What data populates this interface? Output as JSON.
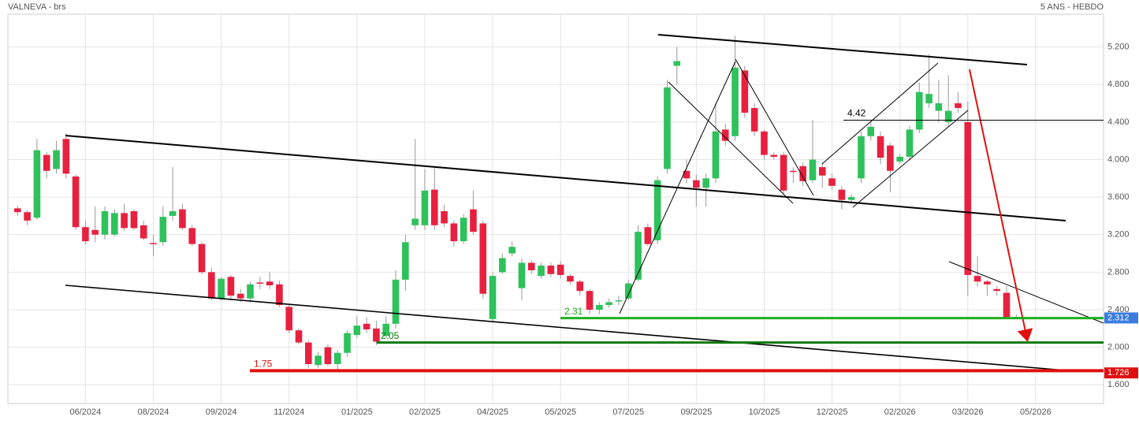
{
  "chart_data": {
    "type": "candlestick",
    "title": "VALNEVA - brs",
    "subtitle": "5 ANS - HEBDO",
    "up_color": "#2ec15c",
    "down_color": "#e8203f",
    "open": [
      3.48,
      3.44,
      3.38,
      4.05,
      3.9,
      4.22,
      3.82,
      3.28,
      3.25,
      3.2,
      3.2,
      3.43,
      3.45,
      3.3,
      3.11,
      3.12,
      3.4,
      3.47,
      3.27,
      3.1,
      2.8,
      2.52,
      2.75,
      2.57,
      2.52,
      2.69,
      2.7,
      2.67,
      2.43,
      2.18,
      2.05,
      1.81,
      2.0,
      1.82,
      1.94,
      2.13,
      2.25,
      2.2,
      2.12,
      2.25,
      2.72,
      3.3,
      3.3,
      3.68,
      3.45,
      3.32,
      3.13,
      3.47,
      3.32,
      2.3,
      2.8,
      3.0,
      2.63,
      2.9,
      2.76,
      2.87,
      2.88,
      2.76,
      2.7,
      2.6,
      2.4,
      2.45,
      2.49,
      2.52,
      2.72,
      3.28,
      3.14,
      3.9,
      5.0,
      3.88,
      3.78,
      3.7,
      3.8,
      4.32,
      4.25,
      4.95,
      4.55,
      4.3,
      4.05,
      4.05,
      3.88,
      3.93,
      3.78,
      3.92,
      3.8,
      3.68,
      3.57,
      3.8,
      4.25,
      4.25,
      4.15,
      3.98,
      4.03,
      4.32,
      4.6,
      4.52,
      4.4,
      4.6,
      4.4,
      2.76,
      2.7,
      2.62,
      2.58,
      2.32
    ],
    "high": [
      3.51,
      3.46,
      4.22,
      4.08,
      4.2,
      4.28,
      3.84,
      3.35,
      3.5,
      3.5,
      3.47,
      3.53,
      3.47,
      3.35,
      3.2,
      3.5,
      3.92,
      3.53,
      3.3,
      3.12,
      2.85,
      2.75,
      2.77,
      2.62,
      2.7,
      2.75,
      2.8,
      2.71,
      2.45,
      2.2,
      2.07,
      1.95,
      2.03,
      1.97,
      2.18,
      2.33,
      2.32,
      2.28,
      2.33,
      2.82,
      3.2,
      4.22,
      3.9,
      3.92,
      3.52,
      3.35,
      3.42,
      3.67,
      3.35,
      2.8,
      3.0,
      3.13,
      2.95,
      2.93,
      2.9,
      2.9,
      2.92,
      2.78,
      2.72,
      2.62,
      2.48,
      2.52,
      2.55,
      2.72,
      3.3,
      3.32,
      3.82,
      4.85,
      5.2,
      4.0,
      3.84,
      3.85,
      4.6,
      4.38,
      5.32,
      5.0,
      4.6,
      4.32,
      4.08,
      4.08,
      3.92,
      3.97,
      4.42,
      3.97,
      3.85,
      3.72,
      3.63,
      4.3,
      4.4,
      4.3,
      4.18,
      4.06,
      4.36,
      4.82,
      5.12,
      4.85,
      4.9,
      4.72,
      4.62,
      2.97,
      2.72,
      2.65,
      2.65,
      2.35
    ],
    "low": [
      3.4,
      3.3,
      3.36,
      3.8,
      3.85,
      3.8,
      3.25,
      3.1,
      3.12,
      3.15,
      3.18,
      3.24,
      3.25,
      3.14,
      2.97,
      3.08,
      3.35,
      3.25,
      3.08,
      2.78,
      2.5,
      2.5,
      2.5,
      2.48,
      2.48,
      2.62,
      2.62,
      2.43,
      2.15,
      2.03,
      1.78,
      1.78,
      1.8,
      1.75,
      1.9,
      2.1,
      2.15,
      2.02,
      2.1,
      2.2,
      2.6,
      3.25,
      3.25,
      3.25,
      3.28,
      3.07,
      3.1,
      3.2,
      2.52,
      2.28,
      2.78,
      2.97,
      2.5,
      2.78,
      2.73,
      2.75,
      2.73,
      2.67,
      2.55,
      2.35,
      2.35,
      2.42,
      2.45,
      2.5,
      2.7,
      3.08,
      3.1,
      3.85,
      4.8,
      3.75,
      3.5,
      3.5,
      3.75,
      4.15,
      4.2,
      4.45,
      4.25,
      4.0,
      4.0,
      3.63,
      3.75,
      3.72,
      3.75,
      3.7,
      3.68,
      3.47,
      3.53,
      3.75,
      4.2,
      3.95,
      3.65,
      3.95,
      4.0,
      4.28,
      4.55,
      4.4,
      4.35,
      4.5,
      2.55,
      2.65,
      2.55,
      2.55,
      2.3,
      2.3
    ],
    "close": [
      3.44,
      3.35,
      4.1,
      3.88,
      4.1,
      3.85,
      3.28,
      3.13,
      3.2,
      3.45,
      3.43,
      3.27,
      3.27,
      3.16,
      3.1,
      3.39,
      3.45,
      3.27,
      3.1,
      2.8,
      2.52,
      2.73,
      2.55,
      2.52,
      2.67,
      2.68,
      2.66,
      2.45,
      2.18,
      2.05,
      1.82,
      1.91,
      1.82,
      1.94,
      2.15,
      2.23,
      2.19,
      2.06,
      2.25,
      2.72,
      3.12,
      3.37,
      3.67,
      3.3,
      3.32,
      3.13,
      3.38,
      3.23,
      2.57,
      2.76,
      2.95,
      3.07,
      2.9,
      2.82,
      2.87,
      2.78,
      2.77,
      2.7,
      2.6,
      2.4,
      2.45,
      2.48,
      2.5,
      2.68,
      3.23,
      3.1,
      3.78,
      4.77,
      5.05,
      3.8,
      3.7,
      3.8,
      4.3,
      4.2,
      4.98,
      4.5,
      4.3,
      4.05,
      4.03,
      3.67,
      3.87,
      3.77,
      4.0,
      3.83,
      3.72,
      3.57,
      3.6,
      4.25,
      4.35,
      4.02,
      3.88,
      4.03,
      4.32,
      4.72,
      4.7,
      4.6,
      4.52,
      4.55,
      2.77,
      2.7,
      2.67,
      2.6,
      2.32,
      2.312
    ],
    "xlim": [
      -1,
      112
    ],
    "xticks": [
      {
        "value": 7,
        "label": "06/2024"
      },
      {
        "value": 14,
        "label": "08/2024"
      },
      {
        "value": 21,
        "label": "09/2024"
      },
      {
        "value": 28,
        "label": "11/2024"
      },
      {
        "value": 35,
        "label": "01/2025"
      },
      {
        "value": 42,
        "label": "02/2025"
      },
      {
        "value": 49,
        "label": "04/2025"
      },
      {
        "value": 56,
        "label": "05/2025"
      },
      {
        "value": 63,
        "label": "07/2025"
      },
      {
        "value": 70,
        "label": "09/2025"
      },
      {
        "value": 77,
        "label": "10/2025"
      },
      {
        "value": 84,
        "label": "12/2025"
      },
      {
        "value": 91,
        "label": "02/2026"
      },
      {
        "value": 98,
        "label": "03/2026"
      },
      {
        "value": 105,
        "label": "05/2026"
      }
    ],
    "ylim": [
      1.4,
      5.55
    ],
    "yticks": [
      {
        "value": 1.6,
        "label": "1.600"
      },
      {
        "value": 2.0,
        "label": "2.000"
      },
      {
        "value": 2.4,
        "label": "2.400"
      },
      {
        "value": 2.8,
        "label": "2.800"
      },
      {
        "value": 3.2,
        "label": "3.200"
      },
      {
        "value": 3.6,
        "label": "3.600"
      },
      {
        "value": 4.0,
        "label": "4.000"
      },
      {
        "value": 4.4,
        "label": "4.400"
      },
      {
        "value": 4.8,
        "label": "4.800"
      },
      {
        "value": 5.2,
        "label": "5.200"
      }
    ],
    "grid": true,
    "levels": [
      {
        "value": 2.31,
        "color": "#1fae1f"
      },
      {
        "value": 2.05,
        "color": "#0b7a0b"
      },
      {
        "value": 1.75,
        "color": "#e01010"
      },
      {
        "value": 4.42,
        "color": "#000000"
      }
    ],
    "price_tags": [
      {
        "value": 2.312,
        "color": "#3d7de0"
      },
      {
        "value": 1.726,
        "color": "#e01010"
      }
    ]
  }
}
